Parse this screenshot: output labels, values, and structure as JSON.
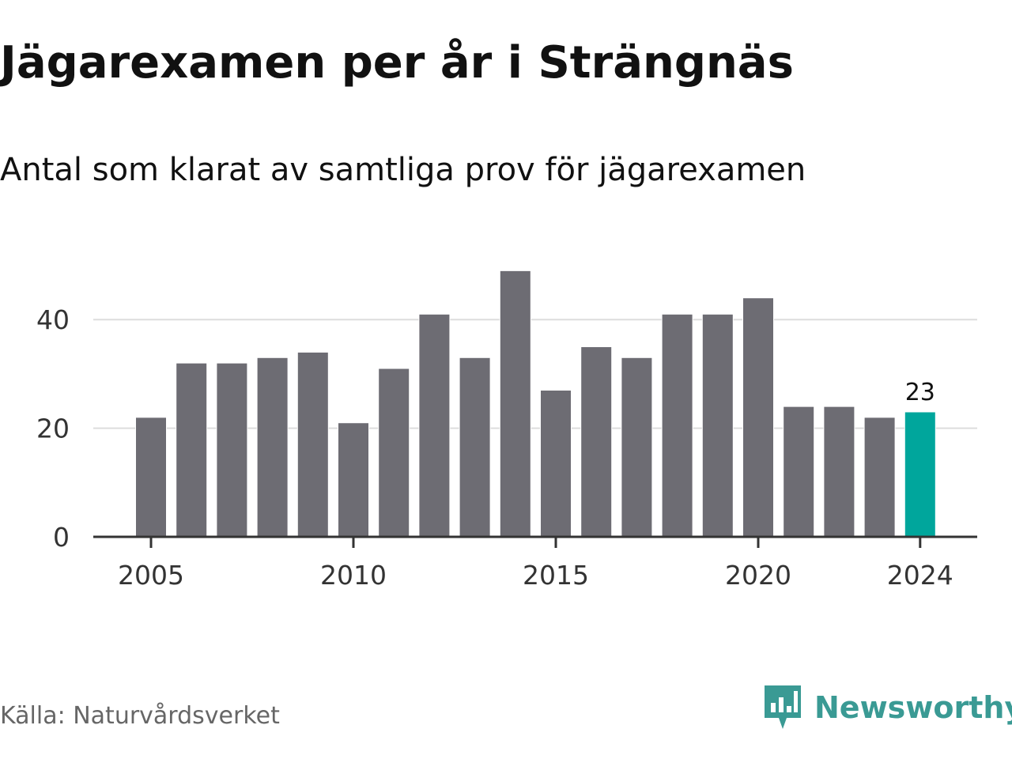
{
  "title": "Jägarexamen per år i Strängnäs",
  "subtitle": "Antal som klarat av samtliga prov för jägarexamen",
  "source": "Källa: Naturvårdsverket",
  "brand": {
    "name": "Newsworthy",
    "logo_icon": "newsworthy-chart-bubble-icon",
    "color": "#3a9a94"
  },
  "colors": {
    "bar": "#6d6c73",
    "highlight": "#00a69c",
    "grid": "#dddddd",
    "axis": "#333333"
  },
  "chart_data": {
    "type": "bar",
    "categories": [
      "2005",
      "2006",
      "2007",
      "2008",
      "2009",
      "2010",
      "2011",
      "2012",
      "2013",
      "2014",
      "2015",
      "2016",
      "2017",
      "2018",
      "2019",
      "2020",
      "2021",
      "2022",
      "2023",
      "2024"
    ],
    "values": [
      22,
      32,
      32,
      33,
      34,
      21,
      31,
      41,
      33,
      49,
      27,
      35,
      33,
      41,
      41,
      44,
      24,
      24,
      22,
      23
    ],
    "highlight_index": 19,
    "data_labels": [
      {
        "index": 19,
        "text": "23"
      }
    ],
    "x_tick_labels": [
      "2005",
      "2010",
      "2015",
      "2020",
      "2024"
    ],
    "y_ticks": [
      0,
      20,
      40
    ],
    "y_tick_labels": [
      "0",
      "20",
      "40"
    ],
    "ylim": [
      0,
      50
    ],
    "grid": true,
    "legend": false,
    "xlabel": "",
    "ylabel": ""
  }
}
